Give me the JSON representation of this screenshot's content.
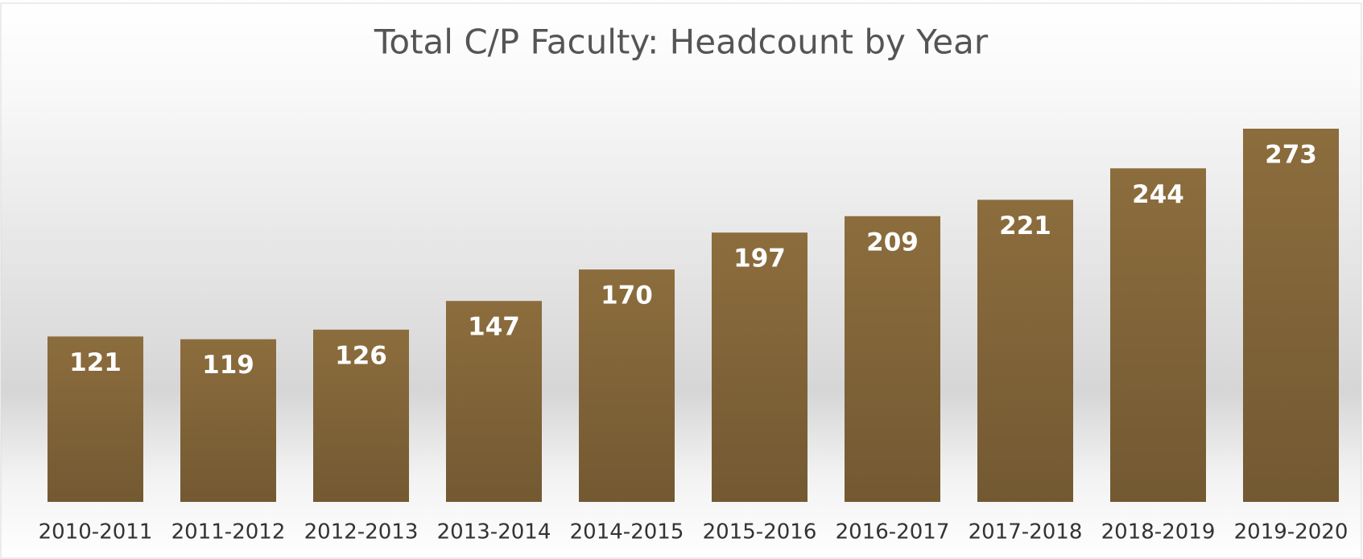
{
  "chart_data": {
    "type": "bar",
    "title": "Total C/P Faculty: Headcount by Year",
    "categories": [
      "2010-2011",
      "2011-2012",
      "2012-2013",
      "2013-2014",
      "2014-2015",
      "2015-2016",
      "2016-2017",
      "2017-2018",
      "2018-2019",
      "2019-2020"
    ],
    "values": [
      121,
      119,
      126,
      147,
      170,
      197,
      209,
      221,
      244,
      273
    ],
    "color": "#86683a"
  }
}
